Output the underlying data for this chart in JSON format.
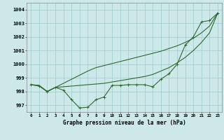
{
  "title": "Graphe pression niveau de la mer (hPa)",
  "x_labels": [
    "0",
    "1",
    "2",
    "3",
    "4",
    "5",
    "6",
    "7",
    "8",
    "9",
    "10",
    "11",
    "12",
    "13",
    "14",
    "15",
    "16",
    "17",
    "18",
    "19",
    "20",
    "21",
    "22",
    "23"
  ],
  "ylim": [
    996.5,
    1004.5
  ],
  "yticks": [
    997,
    998,
    999,
    1000,
    1001,
    1002,
    1003,
    1004
  ],
  "background_color": "#cce8e8",
  "grid_color": "#99cccc",
  "line_color": "#2d6a2d",
  "line1": [
    998.5,
    998.4,
    998.0,
    998.3,
    998.1,
    997.4,
    996.8,
    996.85,
    997.4,
    997.6,
    998.45,
    998.45,
    998.5,
    998.5,
    998.5,
    998.35,
    998.9,
    999.3,
    1000.0,
    1001.4,
    1002.0,
    1003.1,
    1003.2,
    1003.75
  ],
  "line2": [
    998.5,
    998.45,
    998.0,
    998.3,
    998.35,
    998.4,
    998.45,
    998.5,
    998.55,
    998.6,
    998.7,
    998.8,
    998.9,
    999.0,
    999.1,
    999.25,
    999.5,
    999.75,
    1000.1,
    1000.5,
    1001.0,
    1001.6,
    1002.3,
    1003.75
  ],
  "line3": [
    998.5,
    998.45,
    998.0,
    998.3,
    998.6,
    998.9,
    999.2,
    999.5,
    999.75,
    999.9,
    1000.05,
    1000.2,
    1000.35,
    1000.5,
    1000.65,
    1000.8,
    1000.95,
    1001.15,
    1001.35,
    1001.6,
    1001.9,
    1002.3,
    1002.8,
    1003.75
  ]
}
